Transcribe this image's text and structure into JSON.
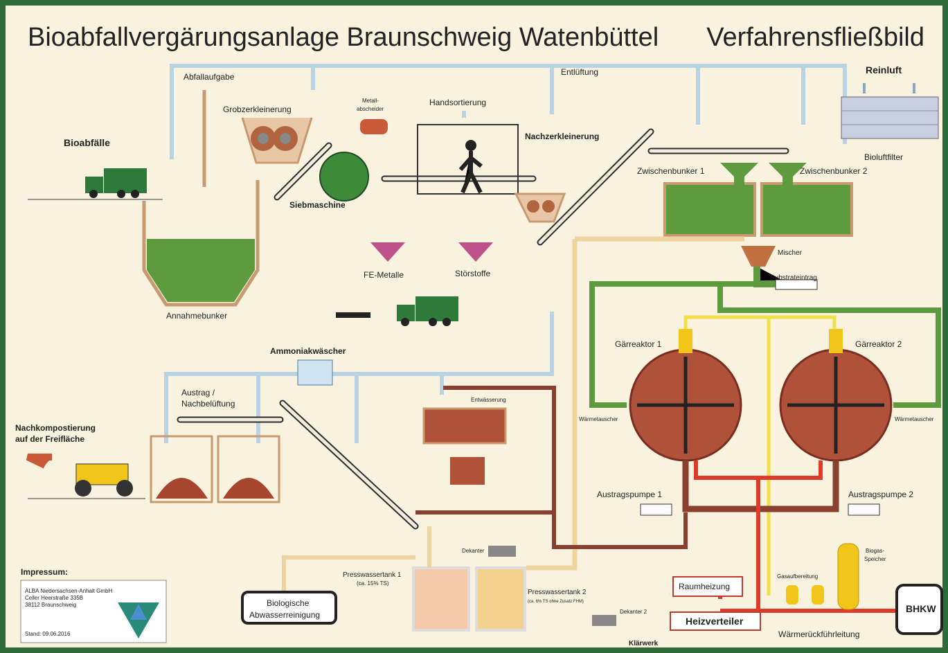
{
  "header": {
    "title": "Bioabfallvergärungsanlage Braunschweig Watenbüttel",
    "subtitle": "Verfahrensfließbild"
  },
  "labels": [
    "Abfallaufgabe",
    "Grobzerkleinerung",
    "Metall-",
    "abscheider",
    "Handsortierung",
    "Entlüftung",
    "Reinluft",
    "Bioluftfilter",
    "Bioabfälle",
    "Siebmaschine",
    "Nachzerkleinerung",
    "Zwischenbunker 1",
    "Zwischenbunker 2",
    "Mischer",
    "Substrateintrag",
    "FE-Metalle",
    "Störstoffe",
    "Annahmebunker",
    "Ammoniakwäscher",
    "Gärreaktor 1",
    "Gärreaktor 2",
    "Wärmetauscher",
    "Wärmetauscher",
    "Austrag /",
    "Nachbelüftung",
    "Nachkompostierung",
    "auf der Freifläche",
    "Entwässerung",
    "Austragspumpe 1",
    "Austragspumpe 2",
    "Dekanter",
    "Dekanter 2",
    "Presswassertank 1",
    "(ca. 15% TS)",
    "Presswassertank 2",
    "(ca. 6% TS ohne Zusatz FHM)",
    "Biogas-",
    "Speicher",
    "Gasaufbereitung",
    "BHKW",
    "Raumheizung",
    "Heizverteiler",
    "Wärmerückführleitung",
    "Klärwerk",
    "Biologische",
    "Abwasserreinigung"
  ],
  "impressum": {
    "heading": "Impressum:",
    "lines": [
      "ALBA Niedersachsen-Anhalt GmbH",
      "Celler Heerstraße 335B",
      "38112 Braunschweig"
    ],
    "date": "Stand: 09.06.2016"
  }
}
